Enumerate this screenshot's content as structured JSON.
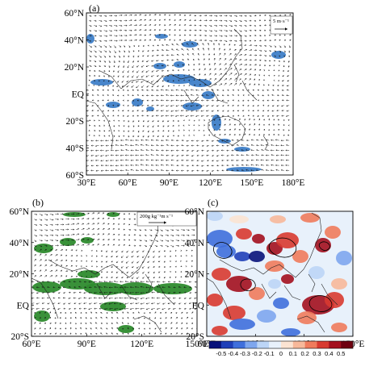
{
  "panels": {
    "a": {
      "label": "(a)",
      "lat_ticks": [
        "60°N",
        "40°N",
        "20°N",
        "EQ",
        "20°S",
        "40°S",
        "60°S"
      ],
      "lon_ticks": [
        "30°E",
        "60°E",
        "90°E",
        "120°E",
        "150°E",
        "180°E"
      ],
      "ref_vector": "5 m·s⁻¹",
      "shading_color": "#3f7fc8"
    },
    "b": {
      "label": "(b)",
      "lat_ticks": [
        "60°N",
        "40°N",
        "20°N",
        "EQ",
        "20°S"
      ],
      "lon_ticks": [
        "60°E",
        "90°E",
        "120°E",
        "150°E"
      ],
      "ref_vector": "200g kg⁻¹m s⁻¹",
      "shading_color": "#2e8b2e"
    },
    "c": {
      "label": "(c)",
      "lat_ticks": [
        "60°N",
        "40°N",
        "20°N",
        "EQ",
        "20°S"
      ],
      "lon_ticks": [
        "60°E",
        "90°E",
        "120°E",
        "150°E"
      ],
      "colorbar_ticks": [
        "-0.5",
        "-0.4",
        "-0.3",
        "-0.2",
        "-0.1",
        "0",
        "0.1",
        "0.2",
        "0.3",
        "0.4",
        "0.5"
      ],
      "colorbar_colors": [
        "#08127a",
        "#1f3fb8",
        "#3f6fdc",
        "#7ea6ee",
        "#bcd5f6",
        "#e8f1fb",
        "#fbe3d2",
        "#f7b89a",
        "#ef7b5c",
        "#d83a30",
        "#a3101e",
        "#6e0010"
      ]
    }
  }
}
